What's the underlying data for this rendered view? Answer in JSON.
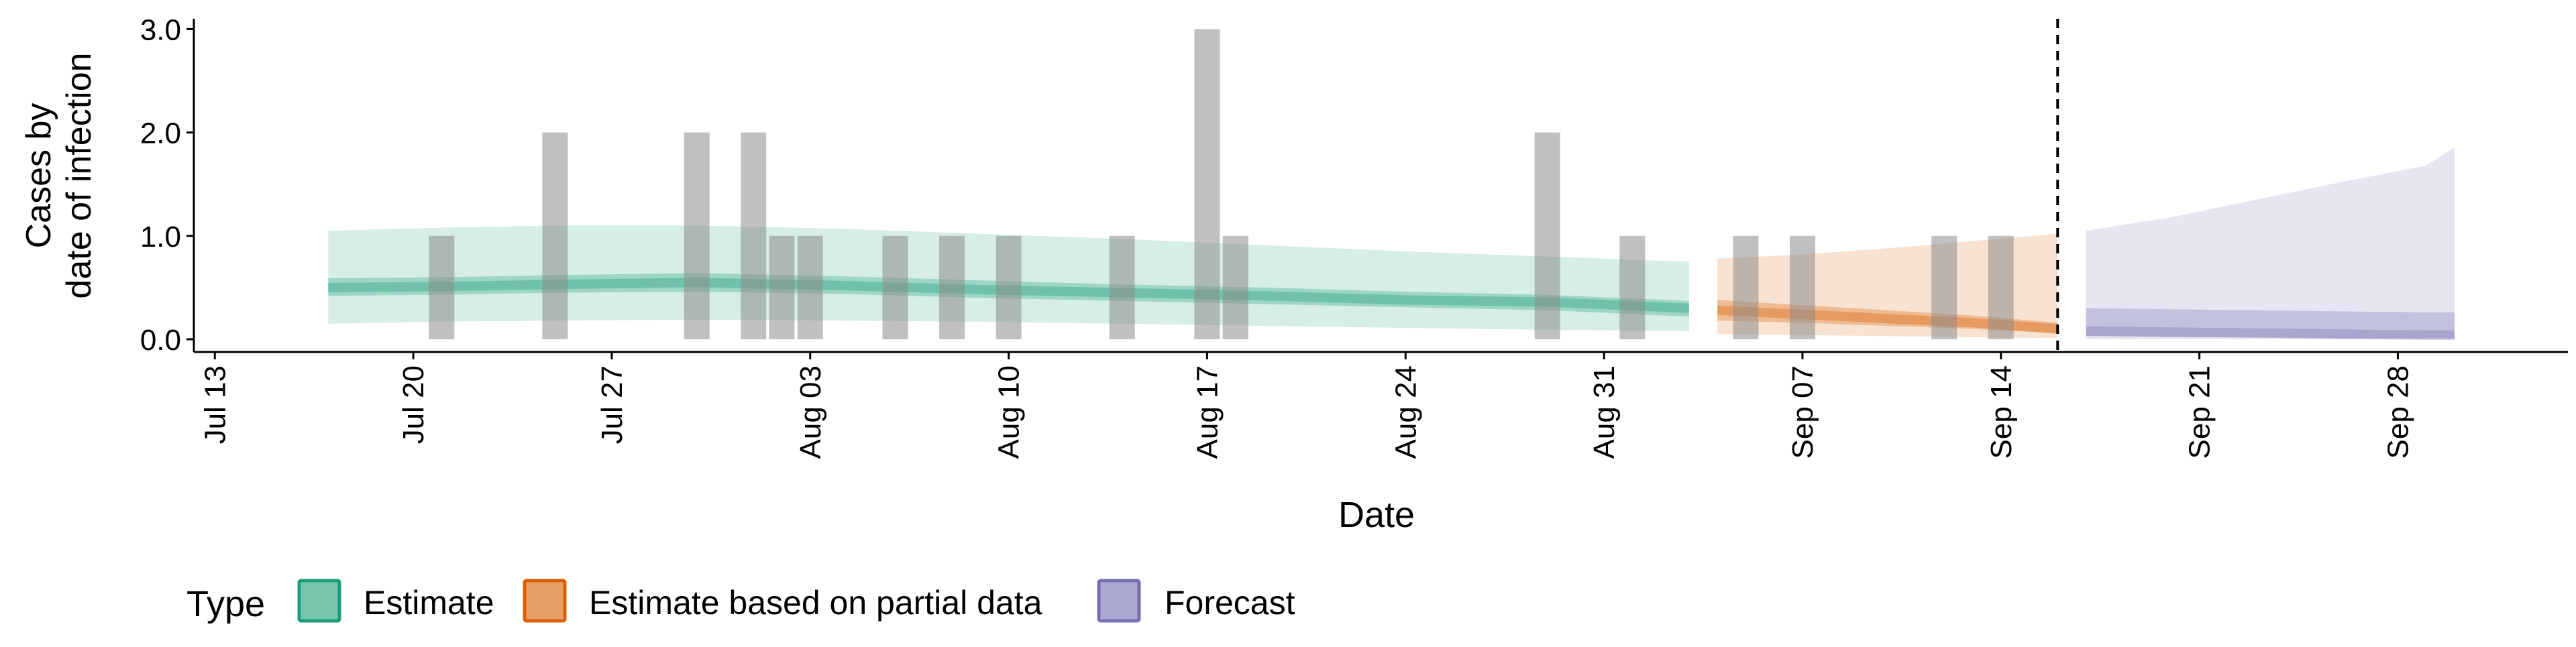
{
  "chart_data": {
    "type": "bar",
    "ylabel_lines": [
      "Cases by",
      "date of infection"
    ],
    "xlabel": "Date",
    "ylim": [
      0,
      3.1
    ],
    "xlim": [
      "2020-07-12",
      "2020-10-04"
    ],
    "x_ticks": [
      "Jul 13",
      "Jul 20",
      "Jul 27",
      "Aug 03",
      "Aug 10",
      "Aug 17",
      "Aug 24",
      "Aug 31",
      "Sep 07",
      "Sep 14",
      "Sep 21",
      "Sep 28"
    ],
    "x_tick_dates": [
      "2020-07-13",
      "2020-07-20",
      "2020-07-27",
      "2020-08-03",
      "2020-08-10",
      "2020-08-17",
      "2020-08-24",
      "2020-08-31",
      "2020-09-07",
      "2020-09-14",
      "2020-09-21",
      "2020-09-28"
    ],
    "y_ticks": [
      0,
      1,
      2,
      3
    ],
    "y_tick_labels": [
      "0.0",
      "1.0",
      "2.0",
      "3.0"
    ],
    "vline_date": "2020-09-16",
    "reported_cases": [
      {
        "date": "2020-07-21",
        "value": 1
      },
      {
        "date": "2020-07-25",
        "value": 2
      },
      {
        "date": "2020-07-30",
        "value": 2
      },
      {
        "date": "2020-08-01",
        "value": 2
      },
      {
        "date": "2020-08-02",
        "value": 1
      },
      {
        "date": "2020-08-03",
        "value": 1
      },
      {
        "date": "2020-08-06",
        "value": 1
      },
      {
        "date": "2020-08-08",
        "value": 1
      },
      {
        "date": "2020-08-10",
        "value": 1
      },
      {
        "date": "2020-08-14",
        "value": 1
      },
      {
        "date": "2020-08-17",
        "value": 3
      },
      {
        "date": "2020-08-18",
        "value": 1
      },
      {
        "date": "2020-08-29",
        "value": 2
      },
      {
        "date": "2020-09-01",
        "value": 1
      },
      {
        "date": "2020-09-05",
        "value": 1
      },
      {
        "date": "2020-09-07",
        "value": 1
      },
      {
        "date": "2020-09-12",
        "value": 1
      },
      {
        "date": "2020-09-14",
        "value": 1
      }
    ],
    "series": [
      {
        "name": "Estimate",
        "color": "#1b9e77",
        "dates": [
          "2020-07-17",
          "2020-07-21",
          "2020-07-25",
          "2020-07-30",
          "2020-08-04",
          "2020-08-09",
          "2020-08-14",
          "2020-08-19",
          "2020-08-24",
          "2020-08-29",
          "2020-09-03"
        ],
        "median": [
          0.5,
          0.51,
          0.53,
          0.55,
          0.52,
          0.48,
          0.45,
          0.42,
          0.38,
          0.36,
          0.3
        ],
        "lower_50": [
          0.42,
          0.43,
          0.45,
          0.46,
          0.44,
          0.4,
          0.37,
          0.34,
          0.31,
          0.28,
          0.22
        ],
        "upper_50": [
          0.59,
          0.6,
          0.62,
          0.64,
          0.61,
          0.57,
          0.53,
          0.5,
          0.46,
          0.43,
          0.37
        ],
        "lower_90": [
          0.15,
          0.17,
          0.18,
          0.19,
          0.18,
          0.17,
          0.15,
          0.13,
          0.11,
          0.09,
          0.08
        ],
        "upper_90": [
          1.05,
          1.08,
          1.1,
          1.1,
          1.07,
          1.02,
          0.97,
          0.91,
          0.85,
          0.8,
          0.75
        ]
      },
      {
        "name": "Estimate based on partial data",
        "color": "#d95f02",
        "dates": [
          "2020-09-04",
          "2020-09-07",
          "2020-09-10",
          "2020-09-13",
          "2020-09-16"
        ],
        "median": [
          0.28,
          0.24,
          0.2,
          0.16,
          0.1
        ],
        "lower_50": [
          0.18,
          0.16,
          0.13,
          0.1,
          0.06
        ],
        "upper_50": [
          0.38,
          0.33,
          0.28,
          0.23,
          0.16
        ],
        "lower_90": [
          0.05,
          0.04,
          0.03,
          0.02,
          0.01
        ],
        "upper_90": [
          0.78,
          0.82,
          0.88,
          0.95,
          1.02
        ]
      },
      {
        "name": "Forecast",
        "color": "#7570b3",
        "dates": [
          "2020-09-17",
          "2020-09-20",
          "2020-09-23",
          "2020-09-26",
          "2020-09-29",
          "2020-09-30"
        ],
        "median": [
          0.08,
          0.07,
          0.06,
          0.05,
          0.04,
          0.04
        ],
        "lower_50": [
          0.03,
          0.02,
          0.02,
          0.01,
          0.01,
          0.01
        ],
        "upper_50": [
          0.3,
          0.29,
          0.28,
          0.27,
          0.26,
          0.26
        ],
        "lower_90": [
          0.0,
          0.0,
          0.0,
          0.0,
          0.0,
          0.0
        ],
        "upper_90": [
          1.05,
          1.18,
          1.35,
          1.52,
          1.68,
          1.86
        ]
      }
    ],
    "legend": {
      "title": "Type",
      "items": [
        {
          "label": "Estimate",
          "color": "#1b9e77"
        },
        {
          "label": "Estimate based on partial data",
          "color": "#d95f02"
        },
        {
          "label": "Forecast",
          "color": "#7570b3"
        }
      ],
      "placement": "bottom"
    },
    "grid": false
  }
}
